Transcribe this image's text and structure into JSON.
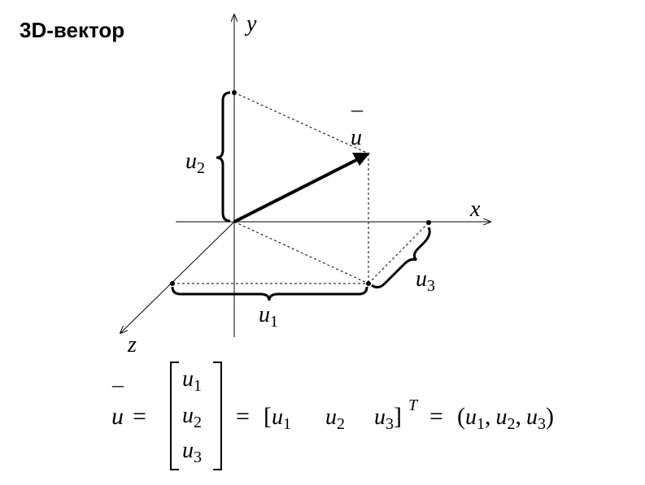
{
  "title": "3D-вектор",
  "axes": {
    "x": "x",
    "y": "y",
    "z": "z"
  },
  "vector": {
    "name": "u",
    "bar": "¯"
  },
  "components": {
    "u1": {
      "base": "u",
      "sub": "1"
    },
    "u2": {
      "base": "u",
      "sub": "2"
    },
    "u3": {
      "base": "u",
      "sub": "3"
    }
  },
  "equation": {
    "lhs": "u",
    "eq": "=",
    "matrix": [
      {
        "base": "u",
        "sub": "1"
      },
      {
        "base": "u",
        "sub": "2"
      },
      {
        "base": "u",
        "sub": "3"
      }
    ],
    "row_open": "[",
    "row_close": "]",
    "transpose": "T",
    "tuple_open": "(",
    "tuple_close": ")",
    "comma": ","
  },
  "colors": {
    "ink": "#000000",
    "background": "#ffffff"
  }
}
